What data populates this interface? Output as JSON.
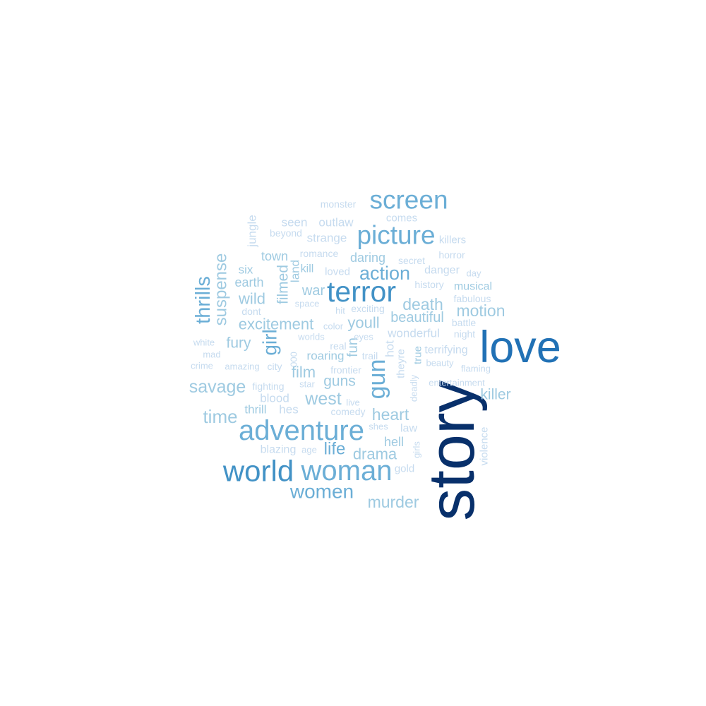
{
  "chart_data": {
    "type": "wordcloud",
    "words": [
      {
        "text": "story",
        "weight": 100,
        "color": "#08306b"
      },
      {
        "text": "love",
        "weight": 68,
        "color": "#2171b5"
      },
      {
        "text": "terror",
        "weight": 45,
        "color": "#4292c6"
      },
      {
        "text": "world",
        "weight": 46,
        "color": "#4292c6"
      },
      {
        "text": "woman",
        "weight": 43,
        "color": "#6baed6"
      },
      {
        "text": "adventure",
        "weight": 43,
        "color": "#6baed6"
      },
      {
        "text": "screen",
        "weight": 40,
        "color": "#6baed6"
      },
      {
        "text": "picture",
        "weight": 40,
        "color": "#6baed6"
      },
      {
        "text": "gun",
        "weight": 37,
        "color": "#6baed6"
      },
      {
        "text": "thrills",
        "weight": 31,
        "color": "#6baed6"
      },
      {
        "text": "girl",
        "weight": 30,
        "color": "#6baed6"
      },
      {
        "text": "women",
        "weight": 30,
        "color": "#6baed6"
      },
      {
        "text": "action",
        "weight": 29,
        "color": "#6baed6"
      },
      {
        "text": "time",
        "weight": 28,
        "color": "#9ecae1"
      },
      {
        "text": "savage",
        "weight": 27,
        "color": "#9ecae1"
      },
      {
        "text": "west",
        "weight": 27,
        "color": "#9ecae1"
      },
      {
        "text": "suspense",
        "weight": 26,
        "color": "#9ecae1"
      },
      {
        "text": "life",
        "weight": 26,
        "color": "#6baed6"
      },
      {
        "text": "murder",
        "weight": 25,
        "color": "#9ecae1"
      },
      {
        "text": "heart",
        "weight": 25,
        "color": "#9ecae1"
      },
      {
        "text": "death",
        "weight": 25,
        "color": "#9ecae1"
      },
      {
        "text": "motion",
        "weight": 25,
        "color": "#9ecae1"
      },
      {
        "text": "wild",
        "weight": 24,
        "color": "#9ecae1"
      },
      {
        "text": "youll",
        "weight": 24,
        "color": "#9ecae1"
      },
      {
        "text": "excitement",
        "weight": 24,
        "color": "#9ecae1"
      },
      {
        "text": "drama",
        "weight": 24,
        "color": "#9ecae1"
      },
      {
        "text": "film",
        "weight": 24,
        "color": "#9ecae1"
      },
      {
        "text": "fury",
        "weight": 23,
        "color": "#9ecae1"
      },
      {
        "text": "filmed",
        "weight": 23,
        "color": "#9ecae1"
      },
      {
        "text": "killer",
        "weight": 23,
        "color": "#9ecae1"
      },
      {
        "text": "guns",
        "weight": 23,
        "color": "#9ecae1"
      },
      {
        "text": "beautiful",
        "weight": 22,
        "color": "#9ecae1"
      },
      {
        "text": "war",
        "weight": 22,
        "color": "#9ecae1"
      },
      {
        "text": "fun",
        "weight": 22,
        "color": "#9ecae1"
      },
      {
        "text": "town",
        "weight": 20,
        "color": "#9ecae1"
      },
      {
        "text": "earth",
        "weight": 20,
        "color": "#9ecae1"
      },
      {
        "text": "daring",
        "weight": 20,
        "color": "#9ecae1"
      },
      {
        "text": "hell",
        "weight": 20,
        "color": "#9ecae1"
      },
      {
        "text": "six",
        "weight": 19,
        "color": "#9ecae1"
      },
      {
        "text": "thrill",
        "weight": 19,
        "color": "#9ecae1"
      },
      {
        "text": "land",
        "weight": 19,
        "color": "#9ecae1"
      },
      {
        "text": "roaring",
        "weight": 19,
        "color": "#9ecae1"
      },
      {
        "text": "jungle",
        "weight": 19,
        "color": "#c6dbef"
      },
      {
        "text": "hot",
        "weight": 19,
        "color": "#c6dbef"
      },
      {
        "text": "wonderful",
        "weight": 19,
        "color": "#c6dbef"
      },
      {
        "text": "seen",
        "weight": 18,
        "color": "#c6dbef"
      },
      {
        "text": "outlaw",
        "weight": 18,
        "color": "#c6dbef"
      },
      {
        "text": "strange",
        "weight": 18,
        "color": "#c6dbef"
      },
      {
        "text": "blood",
        "weight": 18,
        "color": "#c6dbef"
      },
      {
        "text": "hes",
        "weight": 18,
        "color": "#c6dbef"
      },
      {
        "text": "blazing",
        "weight": 17,
        "color": "#c6dbef"
      },
      {
        "text": "law",
        "weight": 17,
        "color": "#c6dbef"
      },
      {
        "text": "terrifying",
        "weight": 17,
        "color": "#c6dbef"
      },
      {
        "text": "danger",
        "weight": 17,
        "color": "#c6dbef"
      },
      {
        "text": "musical",
        "weight": 17,
        "color": "#9ecae1"
      },
      {
        "text": "kill",
        "weight": 17,
        "color": "#9ecae1"
      },
      {
        "text": "killers",
        "weight": 16,
        "color": "#c6dbef"
      },
      {
        "text": "true",
        "weight": 16,
        "color": "#9ecae1"
      },
      {
        "text": "gold",
        "weight": 16,
        "color": "#c6dbef"
      },
      {
        "text": "theyre",
        "weight": 16,
        "color": "#c6dbef"
      },
      {
        "text": "violence",
        "weight": 16,
        "color": "#c6dbef"
      },
      {
        "text": "comes",
        "weight": 16,
        "color": "#c6dbef"
      },
      {
        "text": "loved",
        "weight": 16,
        "color": "#c6dbef"
      },
      {
        "text": "dont",
        "weight": 15,
        "color": "#c6dbef"
      },
      {
        "text": "beyond",
        "weight": 15,
        "color": "#c6dbef"
      },
      {
        "text": "romance",
        "weight": 15,
        "color": "#c6dbef"
      },
      {
        "text": "secret",
        "weight": 15,
        "color": "#c6dbef"
      },
      {
        "text": "horror",
        "weight": 15,
        "color": "#c6dbef"
      },
      {
        "text": "monster",
        "weight": 15,
        "color": "#c6dbef"
      },
      {
        "text": "history",
        "weight": 15,
        "color": "#c6dbef"
      },
      {
        "text": "exciting",
        "weight": 15,
        "color": "#c6dbef"
      },
      {
        "text": "fabulous",
        "weight": 15,
        "color": "#c6dbef"
      },
      {
        "text": "battle",
        "weight": 15,
        "color": "#c6dbef"
      },
      {
        "text": "night",
        "weight": 15,
        "color": "#c6dbef"
      },
      {
        "text": "comedy",
        "weight": 15,
        "color": "#c6dbef"
      },
      {
        "text": "frontier",
        "weight": 15,
        "color": "#c6dbef"
      },
      {
        "text": "fighting",
        "weight": 15,
        "color": "#c6dbef"
      },
      {
        "text": "real",
        "weight": 15,
        "color": "#c6dbef"
      },
      {
        "text": "trail",
        "weight": 15,
        "color": "#c6dbef"
      },
      {
        "text": "city",
        "weight": 15,
        "color": "#c6dbef"
      },
      {
        "text": "star",
        "weight": 14,
        "color": "#c6dbef"
      },
      {
        "text": "hit",
        "weight": 14,
        "color": "#c6dbef"
      },
      {
        "text": "space",
        "weight": 14,
        "color": "#c6dbef"
      },
      {
        "text": "day",
        "weight": 14,
        "color": "#c6dbef"
      },
      {
        "text": "white",
        "weight": 14,
        "color": "#c6dbef"
      },
      {
        "text": "mad",
        "weight": 14,
        "color": "#c6dbef"
      },
      {
        "text": "crime",
        "weight": 14,
        "color": "#c6dbef"
      },
      {
        "text": "amazing",
        "weight": 14,
        "color": "#c6dbef"
      },
      {
        "text": "color",
        "weight": 14,
        "color": "#c6dbef"
      },
      {
        "text": "worlds",
        "weight": 14,
        "color": "#c6dbef"
      },
      {
        "text": "eyes",
        "weight": 14,
        "color": "#c6dbef"
      },
      {
        "text": "beauty",
        "weight": 14,
        "color": "#c6dbef"
      },
      {
        "text": "flaming",
        "weight": 14,
        "color": "#c6dbef"
      },
      {
        "text": "entertainment",
        "weight": 14,
        "color": "#c6dbef"
      },
      {
        "text": "live",
        "weight": 14,
        "color": "#c6dbef"
      },
      {
        "text": "shes",
        "weight": 14,
        "color": "#c6dbef"
      },
      {
        "text": "age",
        "weight": 14,
        "color": "#c6dbef"
      },
      {
        "text": "girls",
        "weight": 14,
        "color": "#c6dbef"
      },
      {
        "text": "deadly",
        "weight": 14,
        "color": "#c6dbef"
      },
      {
        "text": "000",
        "weight": 14,
        "color": "#c6dbef"
      }
    ]
  }
}
